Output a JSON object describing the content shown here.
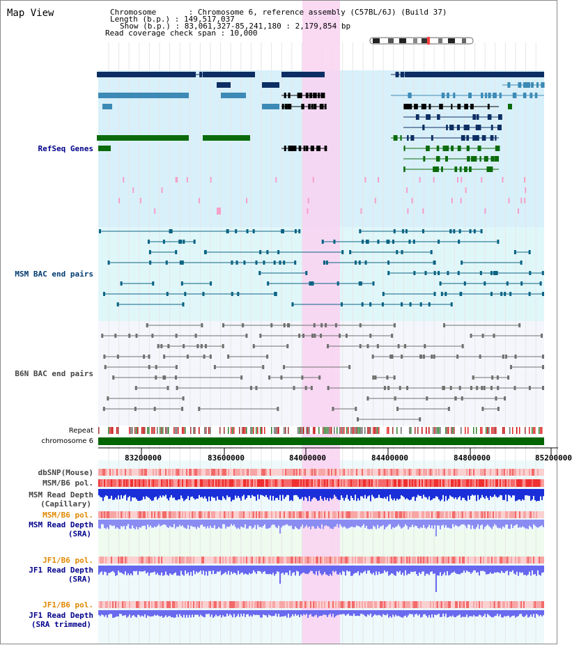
{
  "header": {
    "title": "Map View",
    "chromosome_line": "Chromosome       : Chromosome 6, reference assembly (C57BL/6J) (Build 37)",
    "length_line": "Length (b.p.) : 149,517,037",
    "show_line": "Show (b.p.) : 83,061,327-85,241,180 : 2,179,854 bp",
    "span_line": "Read coverage check span : 10,000"
  },
  "tracks": {
    "refseq": "RefSeq Genes",
    "msm_bac": "MSM BAC end pairs",
    "b6n_bac": "B6N BAC end pairs",
    "repeat": "Repeat",
    "chromosome": "chromosome 6",
    "dbsnp": "dbSNP(Mouse)",
    "msm_pol_cap": "MSM/B6 pol.",
    "msm_depth_cap_1": "MSM Read Depth",
    "msm_depth_cap_2": "(Capillary)",
    "msm_pol_sra": "MSM/B6 pol.",
    "msm_depth_sra_1": "MSM Read Depth",
    "msm_depth_sra_2": "(SRA)",
    "jf1_pol": "JF1/B6 pol.",
    "jf1_depth_1": "JF1 Read Depth",
    "jf1_depth_2": "(SRA)",
    "jf1_pol_trim": "JF1/B6 pol.",
    "jf1_trim_1": "JF1 Read Depth",
    "jf1_trim_2": "(SRA trimmed)"
  },
  "axis": {
    "ticks": [
      "83200000",
      "83600000",
      "84000000",
      "84400000",
      "84800000",
      "85200000"
    ]
  },
  "colors": {
    "highlight": "#f9d2f1",
    "refseq_bg": "#d8f0fa",
    "msm_bg": "#e0f7fa",
    "b6n_bg": "#f4f6fb",
    "chromosome": "#006400"
  }
}
